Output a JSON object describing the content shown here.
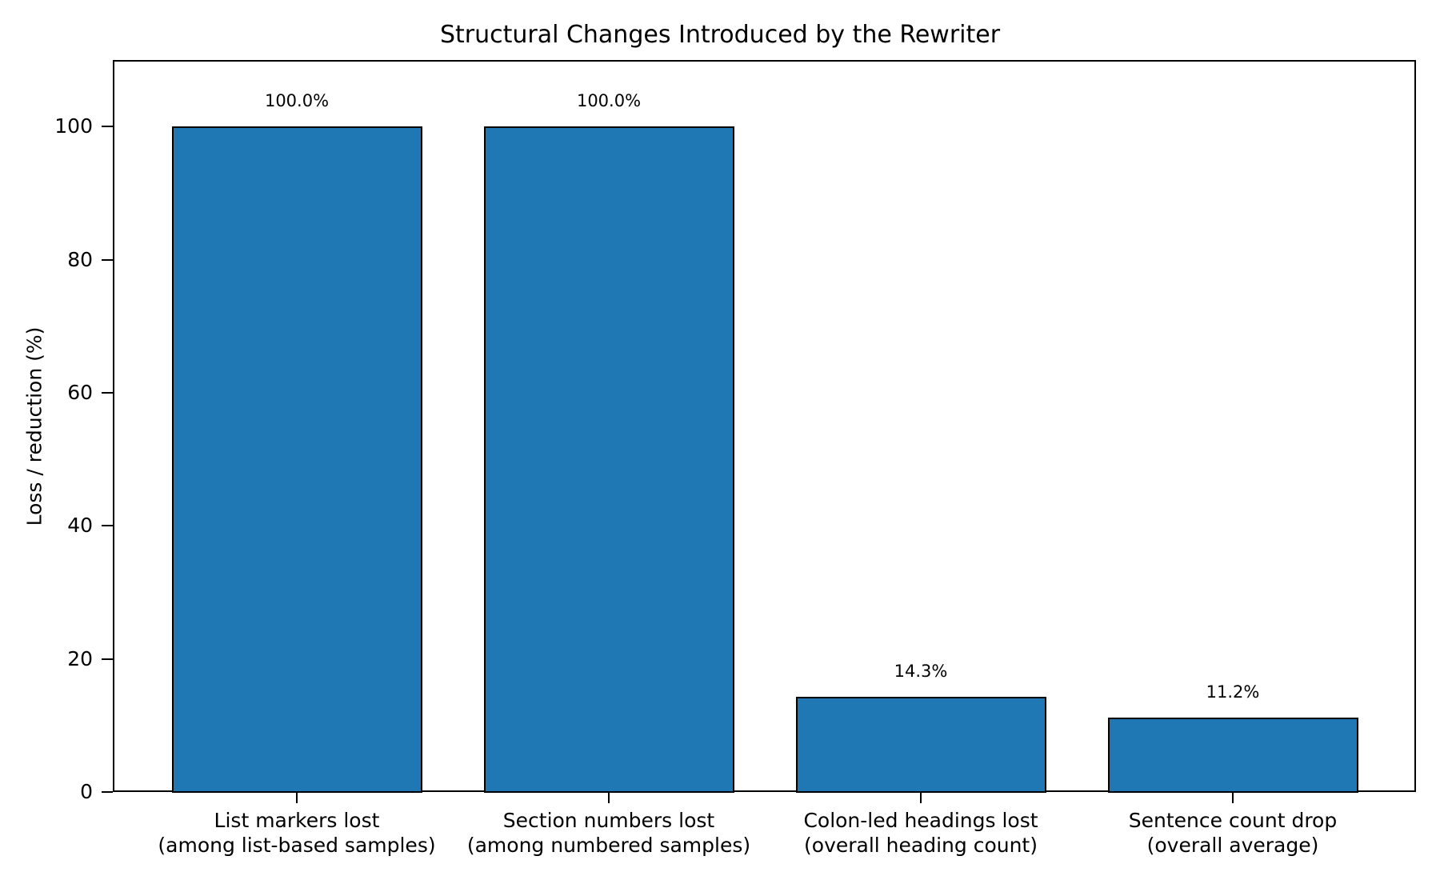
{
  "chart_data": {
    "type": "bar",
    "title": "Structural Changes Introduced by the Rewriter",
    "xlabel": "",
    "ylabel": "Loss / reduction (%)",
    "ylim": [
      0,
      110
    ],
    "yticks": [
      0,
      20,
      40,
      60,
      80,
      100
    ],
    "grid": false,
    "legend": null,
    "bar_color": "#1f77b4",
    "categories": [
      "List markers lost\n(among list-based samples)",
      "Section numbers lost\n(among numbered samples)",
      "Colon-led headings lost\n(overall heading count)",
      "Sentence count drop\n(overall average)"
    ],
    "category_lines": [
      [
        "List markers lost",
        "(among list-based samples)"
      ],
      [
        "Section numbers lost",
        "(among numbered samples)"
      ],
      [
        "Colon-led headings lost",
        "(overall heading count)"
      ],
      [
        "Sentence count drop",
        "(overall average)"
      ]
    ],
    "values": [
      100.0,
      100.0,
      14.3,
      11.2
    ],
    "value_labels": [
      "100.0%",
      "100.0%",
      "14.3%",
      "11.2%"
    ]
  },
  "ytick_labels": [
    "0",
    "20",
    "40",
    "60",
    "80",
    "100"
  ]
}
